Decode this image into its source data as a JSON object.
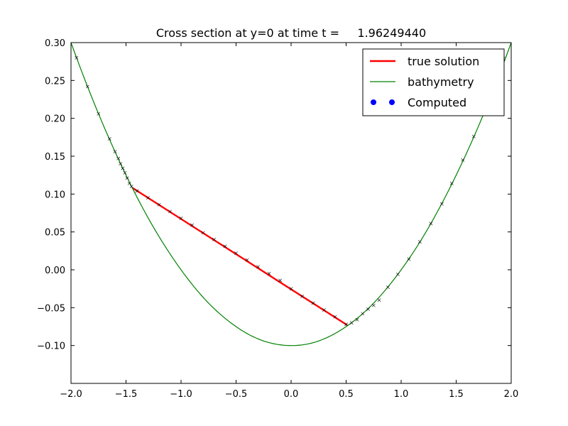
{
  "chart_data": {
    "type": "line",
    "title": "Cross section at y=0 at time t =     1.96249440",
    "xlabel": "",
    "ylabel": "",
    "xlim": [
      -2.0,
      2.0
    ],
    "ylim": [
      -0.15,
      0.3
    ],
    "grid": false,
    "legend_placement": "top-right",
    "x_ticks": [
      -2.0,
      -1.5,
      -1.0,
      -0.5,
      0.0,
      0.5,
      1.0,
      1.5,
      2.0
    ],
    "x_tick_labels": [
      "−2.0",
      "−1.5",
      "−1.0",
      "−0.5",
      "0.0",
      "0.5",
      "1.0",
      "1.5",
      "2.0"
    ],
    "y_ticks": [
      -0.1,
      -0.05,
      0.0,
      0.05,
      0.1,
      0.15,
      0.2,
      0.25,
      0.3
    ],
    "y_tick_labels": [
      "−0.10",
      "−0.05",
      "0.00",
      "0.05",
      "0.10",
      "0.15",
      "0.20",
      "0.25",
      "0.30"
    ],
    "series": [
      {
        "name": "true solution",
        "color": "#ff0000",
        "style": "thick-line",
        "points": [
          [
            -1.44,
            0.108
          ],
          [
            0.51,
            -0.073
          ]
        ]
      },
      {
        "name": "bathymetry",
        "color": "#008000",
        "style": "line",
        "points": [
          [
            -2.0,
            0.3
          ],
          [
            -1.75,
            0.206
          ],
          [
            -1.5,
            0.125
          ],
          [
            -1.25,
            0.056
          ],
          [
            -1.0,
            0.0
          ],
          [
            -0.75,
            -0.044
          ],
          [
            -0.5,
            -0.075
          ],
          [
            -0.25,
            -0.094
          ],
          [
            0.0,
            -0.1
          ],
          [
            0.25,
            -0.094
          ],
          [
            0.5,
            -0.075
          ],
          [
            0.75,
            -0.044
          ],
          [
            1.0,
            0.0
          ],
          [
            1.25,
            0.056
          ],
          [
            1.5,
            0.125
          ],
          [
            1.75,
            0.206
          ],
          [
            2.0,
            0.3
          ]
        ]
      },
      {
        "name": "Computed",
        "color": "#0000ff",
        "style": "markers",
        "points": [
          [
            -1.95,
            0.28
          ],
          [
            -1.85,
            0.242
          ],
          [
            -1.75,
            0.206
          ],
          [
            -1.65,
            0.173
          ],
          [
            -1.6,
            0.156
          ],
          [
            -1.57,
            0.147
          ],
          [
            -1.55,
            0.14
          ],
          [
            -1.53,
            0.134
          ],
          [
            -1.51,
            0.128
          ],
          [
            -1.49,
            0.121
          ],
          [
            -1.47,
            0.114
          ],
          [
            -1.45,
            0.11
          ],
          [
            -1.4,
            0.104
          ],
          [
            -1.3,
            0.095
          ],
          [
            -1.2,
            0.086
          ],
          [
            -1.1,
            0.077
          ],
          [
            -1.0,
            0.068
          ],
          [
            -0.9,
            0.059
          ],
          [
            -0.8,
            0.049
          ],
          [
            -0.7,
            0.04
          ],
          [
            -0.6,
            0.031
          ],
          [
            -0.5,
            0.022
          ],
          [
            -0.4,
            0.013
          ],
          [
            -0.3,
            0.004
          ],
          [
            -0.2,
            -0.005
          ],
          [
            -0.1,
            -0.014
          ],
          [
            0.0,
            -0.025
          ],
          [
            0.1,
            -0.035
          ],
          [
            0.2,
            -0.044
          ],
          [
            0.3,
            -0.053
          ],
          [
            0.4,
            -0.062
          ],
          [
            0.5,
            -0.072
          ],
          [
            0.55,
            -0.07
          ],
          [
            0.6,
            -0.066
          ],
          [
            0.65,
            -0.058
          ],
          [
            0.7,
            -0.052
          ],
          [
            0.75,
            -0.047
          ],
          [
            0.8,
            -0.04
          ],
          [
            0.88,
            -0.023
          ],
          [
            0.97,
            -0.006
          ],
          [
            1.07,
            0.014
          ],
          [
            1.17,
            0.037
          ],
          [
            1.27,
            0.061
          ],
          [
            1.37,
            0.087
          ],
          [
            1.46,
            0.114
          ],
          [
            1.56,
            0.145
          ],
          [
            1.66,
            0.176
          ],
          [
            1.75,
            0.206
          ],
          [
            1.84,
            0.239
          ],
          [
            1.93,
            0.279
          ]
        ]
      }
    ],
    "legend": [
      {
        "label": "true solution",
        "color": "#ff0000",
        "style": "thick-line"
      },
      {
        "label": "bathymetry",
        "color": "#008000",
        "style": "line"
      },
      {
        "label": "Computed",
        "color": "#0000ff",
        "style": "dots"
      }
    ]
  }
}
